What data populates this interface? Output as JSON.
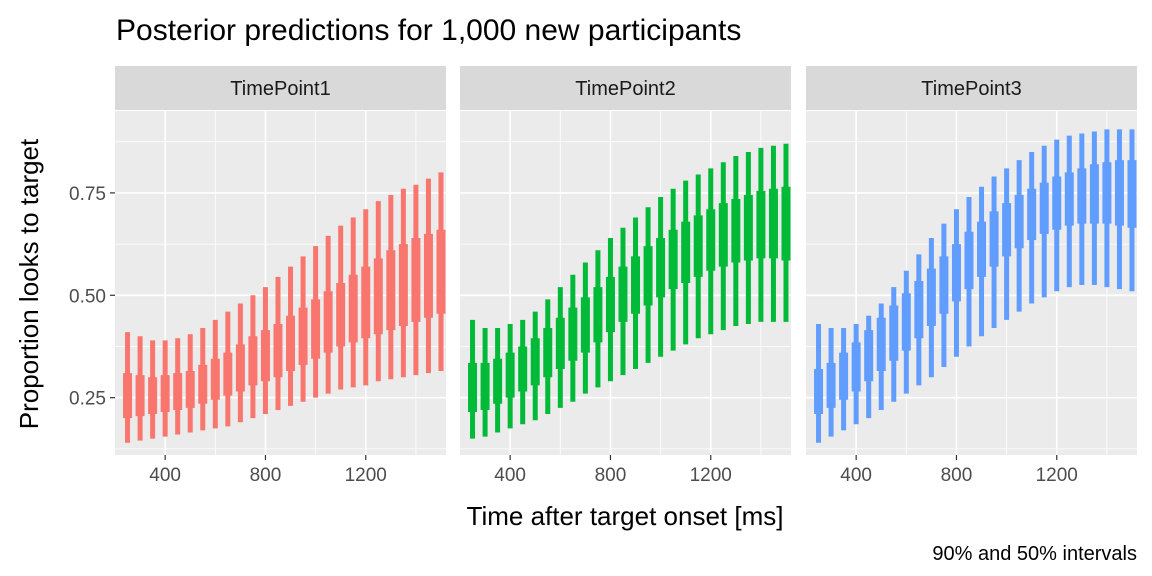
{
  "chart_data": {
    "type": "interval",
    "title": "Posterior predictions for 1,000 new participants",
    "xlabel": "Time after target onset [ms]",
    "ylabel": "Proportion looks to target",
    "caption": "90% and 50% intervals",
    "xlim": [
      200,
      1520
    ],
    "ylim": [
      0.11,
      0.95
    ],
    "x_ticks": [
      400,
      800,
      1200
    ],
    "y_ticks": [
      0.25,
      0.5,
      0.75
    ],
    "y_tick_labels": [
      "0.25",
      "0.50",
      "0.75"
    ],
    "x": [
      250,
      300,
      350,
      400,
      450,
      500,
      550,
      600,
      650,
      700,
      750,
      800,
      850,
      900,
      950,
      1000,
      1050,
      1100,
      1150,
      1200,
      1250,
      1300,
      1350,
      1400,
      1450,
      1500
    ],
    "panels": [
      {
        "name": "TimePoint1",
        "color": "#F8766D",
        "lo90": [
          0.14,
          0.145,
          0.15,
          0.155,
          0.16,
          0.165,
          0.17,
          0.175,
          0.18,
          0.19,
          0.2,
          0.21,
          0.22,
          0.23,
          0.24,
          0.25,
          0.26,
          0.27,
          0.275,
          0.28,
          0.29,
          0.295,
          0.3,
          0.305,
          0.31,
          0.315
        ],
        "lo50": [
          0.2,
          0.205,
          0.21,
          0.215,
          0.22,
          0.225,
          0.235,
          0.245,
          0.255,
          0.265,
          0.28,
          0.29,
          0.3,
          0.315,
          0.33,
          0.345,
          0.36,
          0.375,
          0.385,
          0.395,
          0.405,
          0.415,
          0.425,
          0.435,
          0.445,
          0.455
        ],
        "hi50": [
          0.31,
          0.305,
          0.3,
          0.305,
          0.31,
          0.315,
          0.33,
          0.345,
          0.36,
          0.38,
          0.4,
          0.415,
          0.43,
          0.45,
          0.47,
          0.49,
          0.51,
          0.53,
          0.55,
          0.57,
          0.59,
          0.61,
          0.625,
          0.64,
          0.65,
          0.66
        ],
        "hi90": [
          0.41,
          0.4,
          0.39,
          0.39,
          0.395,
          0.405,
          0.42,
          0.44,
          0.46,
          0.48,
          0.5,
          0.52,
          0.545,
          0.57,
          0.595,
          0.62,
          0.645,
          0.67,
          0.69,
          0.71,
          0.73,
          0.745,
          0.76,
          0.77,
          0.785,
          0.8
        ]
      },
      {
        "name": "TimePoint2",
        "color": "#00BA38",
        "lo90": [
          0.15,
          0.155,
          0.165,
          0.175,
          0.185,
          0.195,
          0.21,
          0.225,
          0.24,
          0.26,
          0.275,
          0.29,
          0.305,
          0.32,
          0.335,
          0.35,
          0.365,
          0.38,
          0.395,
          0.405,
          0.415,
          0.425,
          0.43,
          0.435,
          0.435,
          0.435
        ],
        "lo50": [
          0.215,
          0.22,
          0.235,
          0.25,
          0.265,
          0.28,
          0.3,
          0.32,
          0.34,
          0.36,
          0.385,
          0.41,
          0.435,
          0.455,
          0.475,
          0.495,
          0.515,
          0.53,
          0.545,
          0.56,
          0.57,
          0.58,
          0.585,
          0.59,
          0.59,
          0.585
        ],
        "hi50": [
          0.335,
          0.335,
          0.345,
          0.36,
          0.375,
          0.395,
          0.42,
          0.445,
          0.47,
          0.495,
          0.52,
          0.545,
          0.57,
          0.595,
          0.62,
          0.64,
          0.66,
          0.68,
          0.695,
          0.71,
          0.725,
          0.735,
          0.745,
          0.755,
          0.76,
          0.765
        ],
        "hi90": [
          0.44,
          0.42,
          0.42,
          0.43,
          0.44,
          0.46,
          0.49,
          0.52,
          0.55,
          0.58,
          0.61,
          0.64,
          0.665,
          0.69,
          0.715,
          0.74,
          0.76,
          0.78,
          0.795,
          0.81,
          0.825,
          0.84,
          0.85,
          0.86,
          0.865,
          0.87
        ]
      },
      {
        "name": "TimePoint3",
        "color": "#619CFF",
        "lo90": [
          0.14,
          0.155,
          0.17,
          0.185,
          0.2,
          0.22,
          0.24,
          0.26,
          0.28,
          0.3,
          0.325,
          0.35,
          0.375,
          0.4,
          0.42,
          0.44,
          0.46,
          0.48,
          0.495,
          0.51,
          0.52,
          0.525,
          0.525,
          0.52,
          0.515,
          0.51
        ],
        "lo50": [
          0.21,
          0.225,
          0.245,
          0.265,
          0.29,
          0.315,
          0.34,
          0.365,
          0.395,
          0.425,
          0.455,
          0.485,
          0.515,
          0.545,
          0.57,
          0.595,
          0.615,
          0.635,
          0.65,
          0.66,
          0.67,
          0.675,
          0.675,
          0.675,
          0.67,
          0.665
        ],
        "hi50": [
          0.32,
          0.335,
          0.36,
          0.385,
          0.415,
          0.445,
          0.475,
          0.505,
          0.535,
          0.565,
          0.595,
          0.625,
          0.655,
          0.68,
          0.705,
          0.725,
          0.745,
          0.76,
          0.775,
          0.79,
          0.8,
          0.81,
          0.82,
          0.825,
          0.83,
          0.83
        ],
        "hi90": [
          0.43,
          0.42,
          0.42,
          0.43,
          0.45,
          0.48,
          0.52,
          0.56,
          0.6,
          0.64,
          0.675,
          0.71,
          0.74,
          0.765,
          0.79,
          0.81,
          0.83,
          0.85,
          0.865,
          0.88,
          0.89,
          0.895,
          0.9,
          0.905,
          0.905,
          0.905
        ]
      }
    ]
  }
}
